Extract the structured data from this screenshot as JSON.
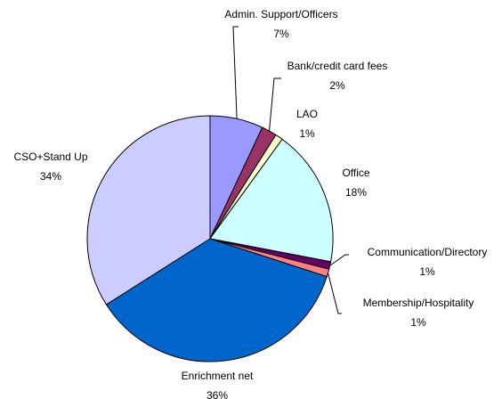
{
  "chart_data": {
    "type": "pie",
    "title": "",
    "slices": [
      {
        "label": "Admin. Support/Officers",
        "value": 7,
        "percent_label": "7%",
        "color": "#9999FF",
        "name": "admin-support-officers"
      },
      {
        "label": "Bank/credit card fees",
        "value": 2,
        "percent_label": "2%",
        "color": "#993366",
        "name": "bank-credit-card-fees"
      },
      {
        "label": "LAO",
        "value": 1,
        "percent_label": "1%",
        "color": "#FFFFCC",
        "name": "lao"
      },
      {
        "label": "Office",
        "value": 18,
        "percent_label": "18%",
        "color": "#CCFFFF",
        "name": "office"
      },
      {
        "label": "Communication/Directory",
        "value": 1,
        "percent_label": "1%",
        "color": "#660066",
        "name": "communication-directory"
      },
      {
        "label": "Membership/Hospitality",
        "value": 1,
        "percent_label": "1%",
        "color": "#FF8080",
        "name": "membership-hospitality"
      },
      {
        "label": "Enrichment net",
        "value": 36,
        "percent_label": "36%",
        "color": "#0066CC",
        "name": "enrichment-net"
      },
      {
        "label": "CSO+Stand Up",
        "value": 34,
        "percent_label": "34%",
        "color": "#CCCCFF",
        "name": "cso-stand-up"
      }
    ],
    "start_angle_deg": 0,
    "direction": "clockwise"
  }
}
